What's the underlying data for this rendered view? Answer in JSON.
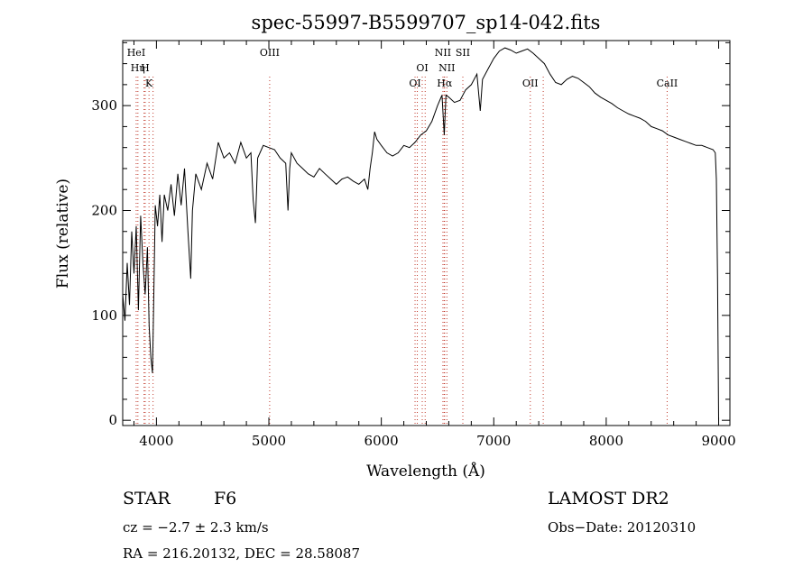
{
  "chart_data": {
    "type": "line",
    "title": "spec-55997-B5599707_sp14-042.fits",
    "xlabel": "Wavelength (Å)",
    "ylabel": "Flux (relative)",
    "xlim": [
      3700,
      9100
    ],
    "ylim": [
      -5,
      362
    ],
    "x_ticks": [
      4000,
      5000,
      6000,
      7000,
      8000,
      9000
    ],
    "y_ticks": [
      0,
      100,
      200,
      300
    ],
    "grid": false,
    "line_color": "#000000",
    "marker_color": "#c0392b",
    "spectrum": [
      [
        3700,
        120
      ],
      [
        3720,
        95
      ],
      [
        3740,
        150
      ],
      [
        3760,
        110
      ],
      [
        3780,
        180
      ],
      [
        3800,
        140
      ],
      [
        3820,
        185
      ],
      [
        3840,
        105
      ],
      [
        3860,
        195
      ],
      [
        3880,
        150
      ],
      [
        3900,
        120
      ],
      [
        3920,
        165
      ],
      [
        3935,
        90
      ],
      [
        3950,
        60
      ],
      [
        3965,
        45
      ],
      [
        3975,
        110
      ],
      [
        3990,
        205
      ],
      [
        4010,
        185
      ],
      [
        4030,
        215
      ],
      [
        4050,
        170
      ],
      [
        4070,
        215
      ],
      [
        4100,
        200
      ],
      [
        4130,
        225
      ],
      [
        4160,
        195
      ],
      [
        4190,
        235
      ],
      [
        4220,
        205
      ],
      [
        4250,
        240
      ],
      [
        4280,
        180
      ],
      [
        4305,
        135
      ],
      [
        4320,
        200
      ],
      [
        4350,
        235
      ],
      [
        4400,
        220
      ],
      [
        4450,
        245
      ],
      [
        4500,
        230
      ],
      [
        4550,
        265
      ],
      [
        4600,
        250
      ],
      [
        4650,
        255
      ],
      [
        4700,
        245
      ],
      [
        4750,
        265
      ],
      [
        4800,
        250
      ],
      [
        4840,
        255
      ],
      [
        4860,
        210
      ],
      [
        4880,
        188
      ],
      [
        4900,
        250
      ],
      [
        4950,
        262
      ],
      [
        5000,
        260
      ],
      [
        5050,
        258
      ],
      [
        5100,
        250
      ],
      [
        5150,
        245
      ],
      [
        5170,
        200
      ],
      [
        5185,
        240
      ],
      [
        5200,
        255
      ],
      [
        5250,
        245
      ],
      [
        5300,
        240
      ],
      [
        5350,
        235
      ],
      [
        5400,
        232
      ],
      [
        5450,
        240
      ],
      [
        5500,
        235
      ],
      [
        5550,
        230
      ],
      [
        5600,
        225
      ],
      [
        5650,
        230
      ],
      [
        5700,
        232
      ],
      [
        5750,
        228
      ],
      [
        5800,
        225
      ],
      [
        5850,
        230
      ],
      [
        5880,
        220
      ],
      [
        5900,
        240
      ],
      [
        5920,
        255
      ],
      [
        5940,
        275
      ],
      [
        5960,
        268
      ],
      [
        6000,
        262
      ],
      [
        6050,
        255
      ],
      [
        6100,
        252
      ],
      [
        6150,
        255
      ],
      [
        6200,
        262
      ],
      [
        6250,
        260
      ],
      [
        6300,
        265
      ],
      [
        6350,
        272
      ],
      [
        6400,
        276
      ],
      [
        6450,
        285
      ],
      [
        6500,
        300
      ],
      [
        6540,
        310
      ],
      [
        6560,
        272
      ],
      [
        6575,
        310
      ],
      [
        6600,
        308
      ],
      [
        6650,
        303
      ],
      [
        6700,
        305
      ],
      [
        6750,
        315
      ],
      [
        6800,
        320
      ],
      [
        6850,
        330
      ],
      [
        6880,
        295
      ],
      [
        6900,
        325
      ],
      [
        6950,
        335
      ],
      [
        7000,
        345
      ],
      [
        7050,
        352
      ],
      [
        7100,
        355
      ],
      [
        7150,
        353
      ],
      [
        7200,
        350
      ],
      [
        7250,
        352
      ],
      [
        7300,
        354
      ],
      [
        7350,
        350
      ],
      [
        7400,
        345
      ],
      [
        7450,
        340
      ],
      [
        7500,
        330
      ],
      [
        7550,
        322
      ],
      [
        7600,
        320
      ],
      [
        7650,
        325
      ],
      [
        7700,
        328
      ],
      [
        7750,
        326
      ],
      [
        7800,
        322
      ],
      [
        7850,
        318
      ],
      [
        7900,
        312
      ],
      [
        7950,
        308
      ],
      [
        8000,
        305
      ],
      [
        8050,
        302
      ],
      [
        8100,
        298
      ],
      [
        8150,
        295
      ],
      [
        8200,
        292
      ],
      [
        8250,
        290
      ],
      [
        8300,
        288
      ],
      [
        8350,
        285
      ],
      [
        8400,
        280
      ],
      [
        8450,
        278
      ],
      [
        8500,
        276
      ],
      [
        8550,
        272
      ],
      [
        8600,
        270
      ],
      [
        8650,
        268
      ],
      [
        8700,
        266
      ],
      [
        8750,
        264
      ],
      [
        8800,
        262
      ],
      [
        8850,
        262
      ],
      [
        8900,
        260
      ],
      [
        8950,
        258
      ],
      [
        8970,
        255
      ],
      [
        8980,
        230
      ],
      [
        8990,
        135
      ],
      [
        9000,
        0
      ]
    ],
    "line_markers": [
      {
        "label": "HeI",
        "wavelength": 3820,
        "row": 0
      },
      {
        "label": "Hη",
        "wavelength": 3835,
        "row": 1
      },
      {
        "label": "H",
        "wavelength": 3900,
        "row": 1
      },
      {
        "label": "K",
        "wavelength": 3934,
        "row": 2
      },
      {
        "label": "OIII",
        "wavelength": 5007,
        "row": 0
      },
      {
        "label": "OI",
        "wavelength": 6300,
        "row": 2
      },
      {
        "label": "OI",
        "wavelength": 6364,
        "row": 1
      },
      {
        "label": "NII",
        "wavelength": 6548,
        "row": 0
      },
      {
        "label": "NII",
        "wavelength": 6583,
        "row": 1
      },
      {
        "label": "Hα",
        "wavelength": 6563,
        "row": 2
      },
      {
        "label": "SII",
        "wavelength": 6725,
        "row": 0
      },
      {
        "label": "OII",
        "wavelength": 7325,
        "row": 2
      },
      {
        "label": "CaII",
        "wavelength": 8542,
        "row": 2
      }
    ],
    "marker_lines_extra": [
      3890,
      3970,
      6320,
      6390,
      6560,
      7440,
      8542
    ]
  },
  "info": {
    "class": "STAR",
    "subclass": "F6",
    "survey": "LAMOST DR2",
    "cz": "cz = −2.7 ± 2.3 km/s",
    "obs_date": "Obs−Date: 20120310",
    "coords": "RA = 216.20132, DEC =  28.58087"
  }
}
